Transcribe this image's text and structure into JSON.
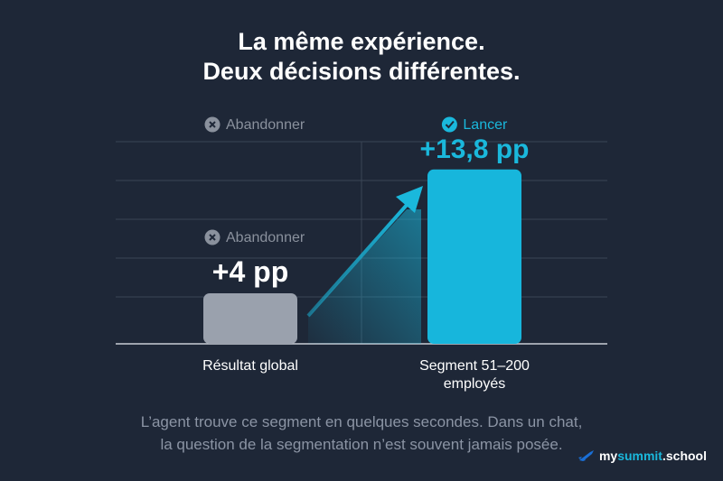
{
  "title": {
    "line1": "La même expérience.",
    "line2": "Deux décisions différentes."
  },
  "chart_data": {
    "type": "bar",
    "categories": [
      "Résultat global",
      "Segment 51–200 employés"
    ],
    "category_lines": [
      [
        "Résultat global"
      ],
      [
        "Segment 51–200",
        "employés"
      ]
    ],
    "values": [
      4,
      13.8
    ],
    "unit": "pp",
    "data_labels": [
      "+4 pp",
      "+13,8 pp"
    ],
    "decisions": [
      {
        "label": "Abandonner",
        "icon": "x-circle-icon",
        "color": "#8a919d"
      },
      {
        "label": "Lancer",
        "icon": "check-circle-icon",
        "color": "#1ab8dc"
      }
    ],
    "top_decision": {
      "label": "Abandonner",
      "icon": "x-circle-icon",
      "color": "#8a919d"
    },
    "bar_colors": [
      "#9aa1ad",
      "#17b6dc"
    ],
    "ylim": [
      0,
      16
    ],
    "grid": true,
    "arrow": true
  },
  "caption": {
    "line1": "L’agent trouve ce segment en quelques secondes. Dans un chat,",
    "line2": "la question de la segmentation n’est souvent jamais posée."
  },
  "logo": {
    "part1": "my",
    "part2": "summit",
    "part3": ".school"
  }
}
